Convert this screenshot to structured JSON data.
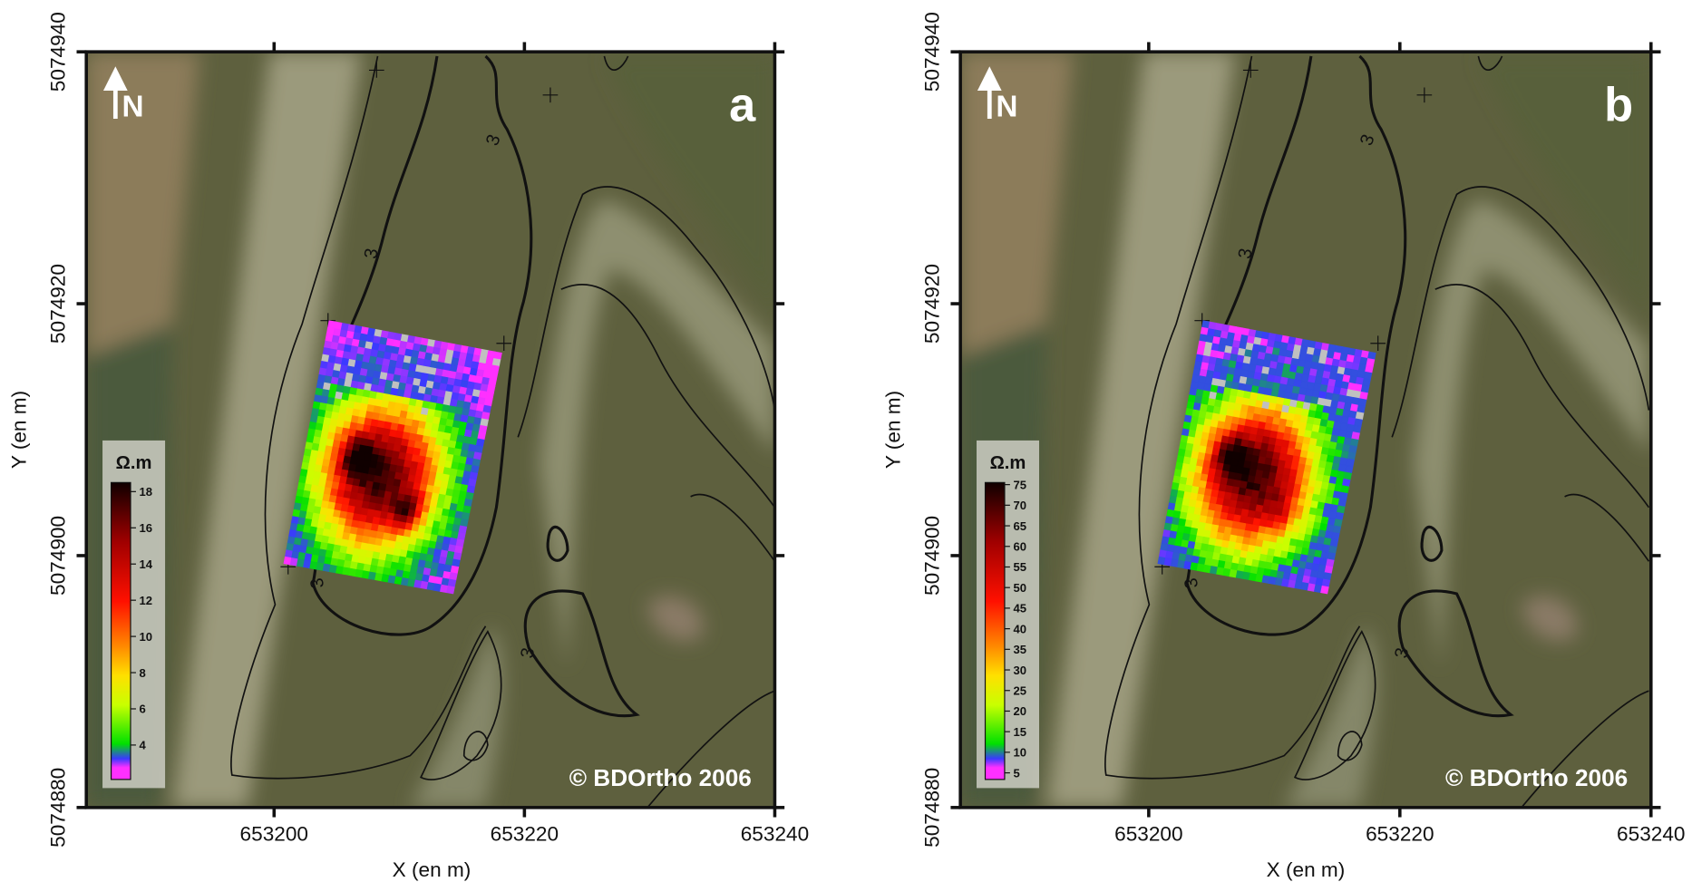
{
  "panels": [
    {
      "label": "a",
      "north": "N",
      "copyright": "© BDOrtho 2006",
      "x_label": "X (en m)",
      "y_label": "Y (en m)",
      "xlim": [
        653185,
        653240
      ],
      "xticks": [
        653200,
        653220,
        653240
      ],
      "ylim": [
        5074880,
        5074940
      ],
      "yticks": [
        5074880,
        5074900,
        5074920,
        5074940
      ],
      "colorbar": {
        "unit": "Ω.m",
        "lim": [
          2.1,
          18.5
        ],
        "ticks": [
          4,
          6,
          8,
          10,
          12,
          14,
          16,
          18
        ]
      },
      "contour_labels": [
        "3",
        "3",
        "3",
        "3"
      ]
    },
    {
      "label": "b",
      "north": "N",
      "copyright": "© BDOrtho 2006",
      "x_label": "X (en m)",
      "y_label": "Y (en m)",
      "xlim": [
        653185,
        653240
      ],
      "xticks": [
        653200,
        653220,
        653240
      ],
      "ylim": [
        5074880,
        5074940
      ],
      "yticks": [
        5074880,
        5074900,
        5074920,
        5074940
      ],
      "colorbar": {
        "unit": "Ω.m",
        "lim": [
          3.4,
          75.5
        ],
        "ticks": [
          5,
          10,
          15,
          20,
          25,
          30,
          35,
          40,
          45,
          50,
          55,
          60,
          65,
          70,
          75
        ]
      },
      "contour_labels": [
        "3",
        "3",
        "3",
        "3"
      ]
    }
  ]
}
